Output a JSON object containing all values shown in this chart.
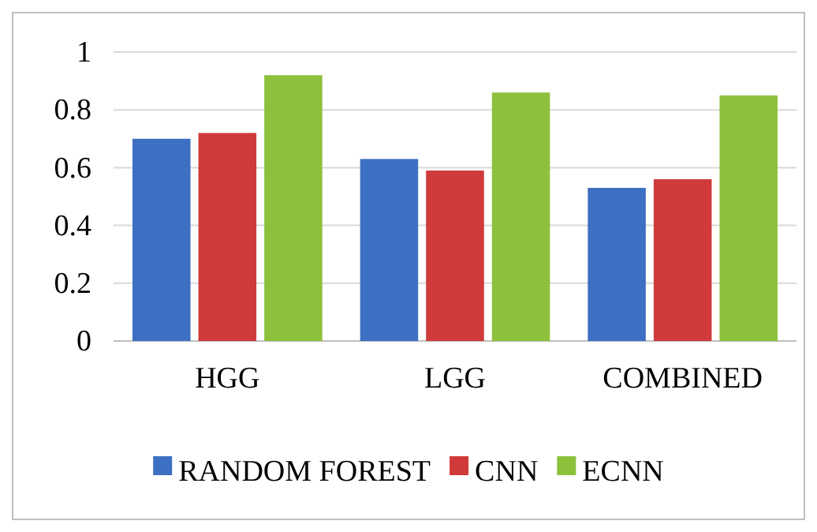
{
  "chart_data": {
    "type": "bar",
    "categories": [
      "HGG",
      "LGG",
      "COMBINED"
    ],
    "series": [
      {
        "name": "RANDOM FOREST",
        "color": "#3d6fc2",
        "values": [
          0.7,
          0.63,
          0.53
        ]
      },
      {
        "name": "CNN",
        "color": "#d03a3a",
        "values": [
          0.72,
          0.59,
          0.56
        ]
      },
      {
        "name": "ECNN",
        "color": "#8dc13c",
        "values": [
          0.92,
          0.86,
          0.85
        ]
      }
    ],
    "ylim": [
      0,
      1
    ],
    "yticks": [
      0,
      {
        "value": 0.2,
        "label": "0.2"
      },
      {
        "value": 0.4,
        "label": "0.4"
      },
      {
        "value": 0.6,
        "label": "0.6"
      },
      {
        "value": 0.8,
        "label": "0.8"
      },
      1
    ],
    "grid": "y",
    "legend": "bottom"
  }
}
